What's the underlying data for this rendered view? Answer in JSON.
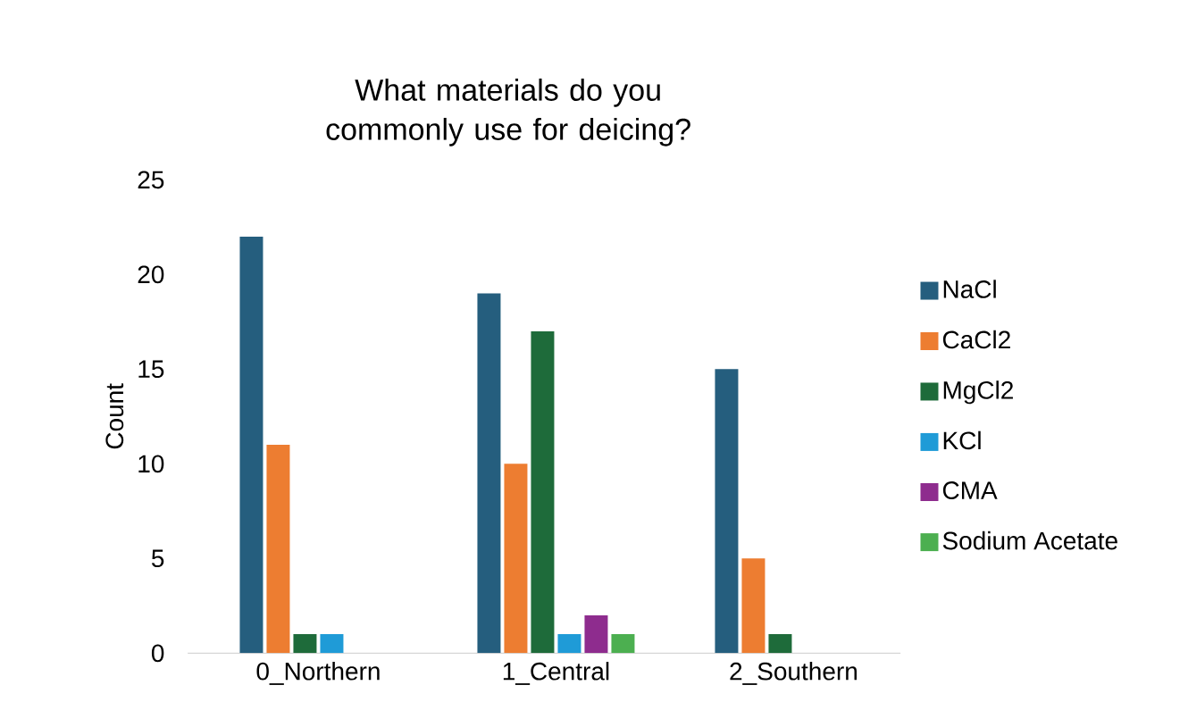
{
  "chart_data": {
    "type": "bar",
    "title": "What materials do you commonly use for deicing?",
    "ylabel": "Count",
    "categories": [
      "0_Northern",
      "1_Central",
      "2_Southern"
    ],
    "series": [
      {
        "name": "NaCl",
        "color": "#255e7e",
        "values": [
          22,
          19,
          15
        ]
      },
      {
        "name": "CaCl2",
        "color": "#ed7d31",
        "values": [
          11,
          10,
          5
        ]
      },
      {
        "name": "MgCl2",
        "color": "#1e6b3a",
        "values": [
          1,
          17,
          1
        ]
      },
      {
        "name": "KCl",
        "color": "#1f9bd7",
        "values": [
          1,
          1,
          0
        ]
      },
      {
        "name": "CMA",
        "color": "#8e2c8e",
        "values": [
          0,
          2,
          0
        ]
      },
      {
        "name": "Sodium Acetate",
        "color": "#4caf50",
        "values": [
          0,
          1,
          0
        ]
      }
    ],
    "ylim": [
      0,
      25
    ],
    "yticks": [
      0,
      5,
      10,
      15,
      20,
      25
    ],
    "grid": false,
    "legend": "right"
  }
}
